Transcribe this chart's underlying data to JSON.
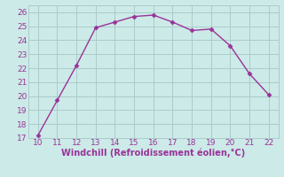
{
  "x": [
    10,
    11,
    12,
    13,
    14,
    15,
    16,
    17,
    18,
    19,
    20,
    21,
    22
  ],
  "y": [
    17.2,
    19.7,
    22.2,
    24.9,
    25.3,
    25.7,
    25.8,
    25.3,
    24.7,
    24.8,
    23.6,
    21.6,
    20.1
  ],
  "line_color": "#993399",
  "marker_color": "#993399",
  "bg_color": "#cceae7",
  "grid_color": "#aacccc",
  "xlabel": "Windchill (Refroidissement éolien,°C)",
  "xlabel_color": "#993399",
  "tick_color": "#993399",
  "xlim": [
    9.5,
    22.5
  ],
  "ylim": [
    17,
    26.5
  ],
  "xticks": [
    10,
    11,
    12,
    13,
    14,
    15,
    16,
    17,
    18,
    19,
    20,
    21,
    22
  ],
  "yticks": [
    17,
    18,
    19,
    20,
    21,
    22,
    23,
    24,
    25,
    26
  ],
  "marker_size": 2.5,
  "line_width": 1.0,
  "tick_fontsize": 6.5,
  "xlabel_fontsize": 7.0
}
